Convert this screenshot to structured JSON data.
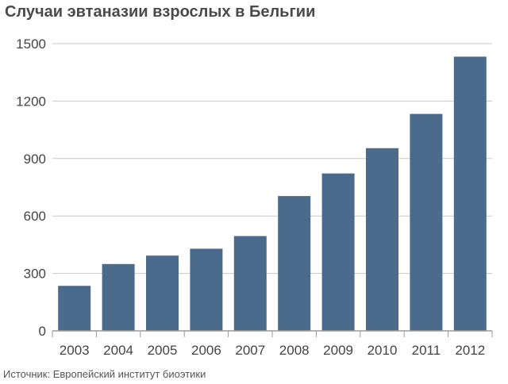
{
  "title": "Случаи эвтаназии взрослых в Бельгии",
  "source": "Источник: Европейский институт биоэтики",
  "colors": {
    "bar": "#4b6b8c",
    "grid": "#c8c8c8",
    "axis": "#9a9a9a",
    "tick_text": "#444444"
  },
  "chart_data": {
    "type": "bar",
    "title": "Случаи эвтаназии взрослых в Бельгии",
    "xlabel": "",
    "ylabel": "",
    "categories": [
      "2003",
      "2004",
      "2005",
      "2006",
      "2007",
      "2008",
      "2009",
      "2010",
      "2011",
      "2012"
    ],
    "values": [
      235,
      349,
      393,
      429,
      495,
      704,
      822,
      954,
      1133,
      1432
    ],
    "ylim": [
      0,
      1500
    ],
    "yticks": [
      0,
      300,
      600,
      900,
      1200,
      1500
    ],
    "grid": true,
    "legend": "none"
  }
}
